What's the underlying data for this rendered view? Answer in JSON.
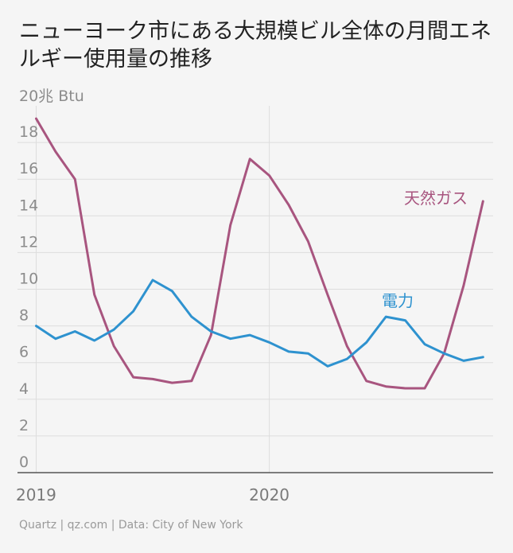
{
  "title": "ニューヨーク市にある大規模ビル全体の月間エネルギー使用量の推移",
  "unit_label": "20兆 Btu",
  "source": "Quartz | qz.com | Data: City of New York",
  "colors": {
    "gas": "#a8557f",
    "electric": "#2e92cf",
    "grid": "#dddddd",
    "axis": "#555555"
  },
  "chart_data": {
    "type": "line",
    "title": "ニューヨーク市にある大規模ビル全体の月間エネルギー使用量の推移",
    "ylabel": "20兆 Btu",
    "ylim": [
      0,
      20
    ],
    "yticks": [
      0,
      2,
      4,
      6,
      8,
      10,
      12,
      14,
      16,
      18
    ],
    "ytick_labels": [
      "0",
      "2",
      "4",
      "6",
      "8",
      "10",
      "12",
      "14",
      "16",
      "18"
    ],
    "xlim": [
      2018.92,
      2020.96
    ],
    "xticks": [
      2019,
      2020
    ],
    "xtick_labels": [
      "2019",
      "2020"
    ],
    "x": [
      2019.0,
      2019.0833,
      2019.1667,
      2019.25,
      2019.3333,
      2019.4167,
      2019.5,
      2019.5833,
      2019.6667,
      2019.75,
      2019.8333,
      2019.9167,
      2020.0,
      2020.0833,
      2020.1667,
      2020.25,
      2020.3333,
      2020.4167,
      2020.5,
      2020.5833,
      2020.6667,
      2020.75,
      2020.8333,
      2020.9167
    ],
    "series": [
      {
        "name": "天然ガス",
        "color": "#a8557f",
        "values": [
          19.3,
          17.5,
          16.0,
          9.7,
          6.9,
          5.2,
          5.1,
          4.9,
          5.0,
          7.5,
          13.5,
          17.1,
          16.2,
          14.6,
          12.6,
          9.7,
          6.9,
          5.0,
          4.7,
          4.6,
          4.6,
          6.5,
          10.2,
          14.8
        ]
      },
      {
        "name": "電力",
        "color": "#2e92cf",
        "values": [
          8.0,
          7.3,
          7.7,
          7.2,
          7.8,
          8.8,
          10.5,
          9.9,
          8.5,
          7.7,
          7.3,
          7.5,
          7.1,
          6.6,
          6.5,
          5.8,
          6.2,
          7.1,
          8.5,
          8.3,
          7.0,
          6.5,
          6.1,
          6.3
        ]
      }
    ]
  }
}
